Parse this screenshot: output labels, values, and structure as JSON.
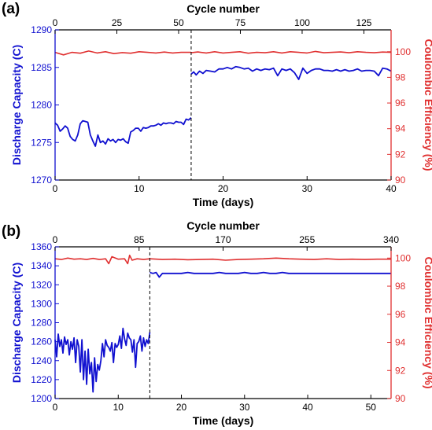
{
  "colors": {
    "capacity": "#1010d0",
    "efficiency": "#e03030",
    "axis": "#000000",
    "divider": "#000000"
  },
  "chart_data": [
    {
      "panel_label": "(a)",
      "type": "line",
      "xlabel": "Time (days)",
      "x2label": "Cycle number",
      "ylabel": "Discharge Capacity (C)",
      "y2label": "Coulombic Efficiency (%)",
      "xlim": [
        0,
        40
      ],
      "x2lim": [
        0,
        136
      ],
      "ylim": [
        1270,
        1290
      ],
      "y2lim": [
        90,
        101.7
      ],
      "xticks": [
        0,
        10,
        20,
        30,
        40
      ],
      "x2ticks": [
        0,
        25,
        50,
        75,
        100,
        125
      ],
      "yticks": [
        1270,
        1275,
        1280,
        1285,
        1290
      ],
      "y2ticks": [
        90,
        92,
        94,
        96,
        98,
        100
      ],
      "divider_x": 16.2,
      "series": [
        {
          "axis": "y",
          "x": [
            0,
            0.3,
            0.6,
            0.9,
            1.2,
            1.5,
            1.8,
            2.1,
            2.4,
            2.7,
            3.0,
            3.3,
            3.6,
            3.9,
            4.2,
            4.5,
            4.8,
            5.1,
            5.4,
            5.7,
            6.0,
            6.3,
            6.6,
            6.9,
            7.2,
            7.5,
            7.8,
            8.1,
            8.4,
            8.7,
            9.0,
            9.3,
            9.6,
            9.9,
            10.2,
            10.5,
            10.8,
            11.1,
            11.4,
            11.7,
            12.0,
            12.3,
            12.6,
            12.9,
            13.2,
            13.5,
            13.8,
            14.1,
            14.4,
            14.7,
            15.0,
            15.3,
            15.6,
            15.9,
            16.2
          ],
          "y": [
            1277.6,
            1277.3,
            1276.5,
            1276.8,
            1277.2,
            1276.9,
            1275.8,
            1275.4,
            1275.2,
            1276.0,
            1277.5,
            1277.9,
            1277.8,
            1277.7,
            1276.0,
            1275.2,
            1274.5,
            1276.0,
            1275.0,
            1275.2,
            1274.8,
            1275.5,
            1275.2,
            1275.4,
            1275.0,
            1275.4,
            1275.3,
            1275.5,
            1275.1,
            1274.9,
            1276.4,
            1276.6,
            1276.9,
            1276.9,
            1276.5,
            1277.0,
            1276.9,
            1277.0,
            1277.2,
            1277.2,
            1277.3,
            1277.5,
            1277.3,
            1277.6,
            1277.5,
            1277.6,
            1277.6,
            1277.5,
            1277.8,
            1277.7,
            1277.7,
            1277.4,
            1278.1,
            1278.0,
            1278.3
          ]
        },
        {
          "axis": "y",
          "x": [
            16.2,
            16.5,
            16.8,
            17.2,
            17.6,
            18.0,
            18.5,
            19.0,
            19.5,
            20.0,
            20.5,
            21.0,
            21.5,
            22.0,
            22.5,
            23.0,
            23.5,
            24.0,
            24.5,
            25.0,
            25.5,
            26.0,
            26.5,
            27.0,
            27.5,
            28.0,
            28.5,
            29.0,
            29.5,
            30.0,
            30.5,
            31.0,
            31.5,
            32.0,
            32.5,
            33.0,
            33.5,
            34.0,
            34.5,
            35.0,
            35.5,
            36.0,
            36.5,
            37.0,
            37.5,
            38.0,
            38.5,
            39.0,
            39.5,
            40.0
          ],
          "y": [
            1284.1,
            1284.4,
            1284.0,
            1284.5,
            1284.2,
            1284.6,
            1284.5,
            1284.4,
            1284.8,
            1284.8,
            1285.0,
            1284.8,
            1285.1,
            1285.0,
            1284.8,
            1284.9,
            1284.5,
            1284.8,
            1284.6,
            1284.8,
            1284.7,
            1284.9,
            1283.9,
            1284.8,
            1284.6,
            1284.8,
            1284.3,
            1283.4,
            1284.9,
            1284.2,
            1284.6,
            1284.8,
            1284.8,
            1284.6,
            1284.6,
            1284.5,
            1284.7,
            1284.5,
            1284.7,
            1284.5,
            1284.6,
            1284.8,
            1284.5,
            1284.6,
            1284.6,
            1284.5,
            1283.9,
            1284.9,
            1284.8,
            1284.5
          ]
        },
        {
          "axis": "y2",
          "x": [
            0,
            1,
            2,
            3,
            4,
            5,
            6,
            7,
            8,
            9,
            10,
            11,
            12,
            13,
            14,
            15,
            16.2
          ],
          "y": [
            99.95,
            99.75,
            99.95,
            99.88,
            100.05,
            99.9,
            100.0,
            99.85,
            99.93,
            99.88,
            100.0,
            99.95,
            99.9,
            99.97,
            99.9,
            99.95,
            99.95
          ]
        },
        {
          "axis": "y2",
          "x": [
            16.2,
            17,
            18,
            19,
            20,
            21,
            22,
            23,
            24,
            25,
            26,
            27,
            28,
            29,
            30,
            31,
            32,
            33,
            34,
            35,
            36,
            37,
            38,
            39,
            40
          ],
          "y": [
            99.92,
            99.98,
            99.9,
            100.0,
            99.9,
            99.95,
            100.0,
            99.88,
            99.95,
            99.92,
            100.0,
            99.9,
            100.0,
            99.95,
            99.9,
            100.02,
            99.92,
            99.95,
            99.98,
            99.92,
            100.0,
            99.95,
            99.92,
            99.97,
            99.95
          ]
        }
      ]
    },
    {
      "panel_label": "(b)",
      "type": "line",
      "xlabel": "Time (days)",
      "x2label": "Cycle number",
      "ylabel": "Discharge Capacity (C)",
      "y2label": "Coulombic Efficiency (%)",
      "xlim": [
        0,
        53.2
      ],
      "x2lim": [
        0,
        340
      ],
      "ylim": [
        1200,
        1360
      ],
      "y2lim": [
        90,
        100.8
      ],
      "xticks": [
        0,
        10,
        20,
        30,
        40,
        50
      ],
      "x2ticks": [
        0,
        85,
        170,
        255,
        340
      ],
      "yticks": [
        1200,
        1220,
        1240,
        1260,
        1280,
        1300,
        1320,
        1340,
        1360
      ],
      "y2ticks": [
        90,
        92,
        94,
        96,
        98,
        100
      ],
      "divider_x": 15.0,
      "series": [
        {
          "axis": "y",
          "x": [
            0,
            0.25,
            0.5,
            0.75,
            1.0,
            1.25,
            1.5,
            1.75,
            2.0,
            2.25,
            2.5,
            2.75,
            3.0,
            3.25,
            3.5,
            3.75,
            4.0,
            4.25,
            4.5,
            4.75,
            5.0,
            5.25,
            5.5,
            5.75,
            6.0,
            6.25,
            6.5,
            6.75,
            7.0,
            7.25,
            7.5,
            7.75,
            8.0,
            8.25,
            8.5,
            8.75,
            9.0,
            9.25,
            9.5,
            9.75,
            10.0,
            10.25,
            10.5,
            10.75,
            11.0,
            11.25,
            11.5,
            11.75,
            12.0,
            12.25,
            12.5,
            12.75,
            13.0,
            13.25,
            13.5,
            13.75,
            14.0,
            14.25,
            14.5,
            14.75,
            15.0
          ],
          "y": [
            1262,
            1244,
            1268,
            1255,
            1262,
            1248,
            1265,
            1257,
            1262,
            1246,
            1260,
            1252,
            1264,
            1238,
            1262,
            1255,
            1228,
            1262,
            1220,
            1250,
            1215,
            1252,
            1226,
            1238,
            1207,
            1243,
            1218,
            1236,
            1230,
            1240,
            1258,
            1244,
            1262,
            1256,
            1254,
            1250,
            1259,
            1238,
            1258,
            1254,
            1257,
            1266,
            1253,
            1274,
            1263,
            1256,
            1269,
            1264,
            1262,
            1249,
            1262,
            1233,
            1258,
            1260,
            1266,
            1250,
            1264,
            1255,
            1262,
            1258,
            1270
          ]
        },
        {
          "axis": "y",
          "x": [
            15.0,
            15.5,
            16.0,
            16.5,
            17.0,
            18,
            19,
            20,
            21,
            22,
            23,
            24,
            25,
            26,
            27,
            28,
            29,
            30,
            31,
            32,
            33,
            34,
            35,
            36,
            37,
            38,
            39,
            40,
            41,
            42,
            43,
            44,
            45,
            46,
            47,
            48,
            49,
            50,
            51,
            52,
            53.2
          ],
          "y": [
            1333,
            1332,
            1333,
            1328,
            1332,
            1332,
            1332,
            1332,
            1333,
            1332,
            1332,
            1332,
            1332,
            1333,
            1332,
            1332,
            1332,
            1333,
            1332,
            1332,
            1333,
            1332,
            1332,
            1333,
            1332,
            1332,
            1332,
            1332,
            1332,
            1332,
            1332,
            1332,
            1332,
            1332,
            1332,
            1332,
            1332,
            1332,
            1332,
            1332,
            1332
          ]
        },
        {
          "axis": "y2",
          "x": [
            0,
            1,
            2,
            3,
            4,
            5,
            6,
            7,
            8,
            8.5,
            9,
            10,
            11,
            11.5,
            11.8,
            12.2,
            13,
            14,
            15.0
          ],
          "y": [
            99.95,
            99.9,
            100.0,
            99.92,
            99.95,
            99.9,
            99.98,
            99.9,
            99.95,
            99.6,
            100.1,
            99.92,
            99.95,
            99.6,
            100.2,
            99.85,
            99.95,
            99.9,
            99.95
          ]
        },
        {
          "axis": "y2",
          "x": [
            15.0,
            17,
            19,
            21,
            23,
            25,
            27,
            29,
            31,
            33,
            35,
            37,
            39,
            41,
            43,
            45,
            47,
            49,
            51,
            53.2
          ],
          "y": [
            99.95,
            99.9,
            99.92,
            99.88,
            99.9,
            99.92,
            99.85,
            99.9,
            99.92,
            99.95,
            100.0,
            99.95,
            99.92,
            99.9,
            99.95,
            99.9,
            99.92,
            99.9,
            99.92,
            99.92
          ]
        }
      ]
    }
  ]
}
